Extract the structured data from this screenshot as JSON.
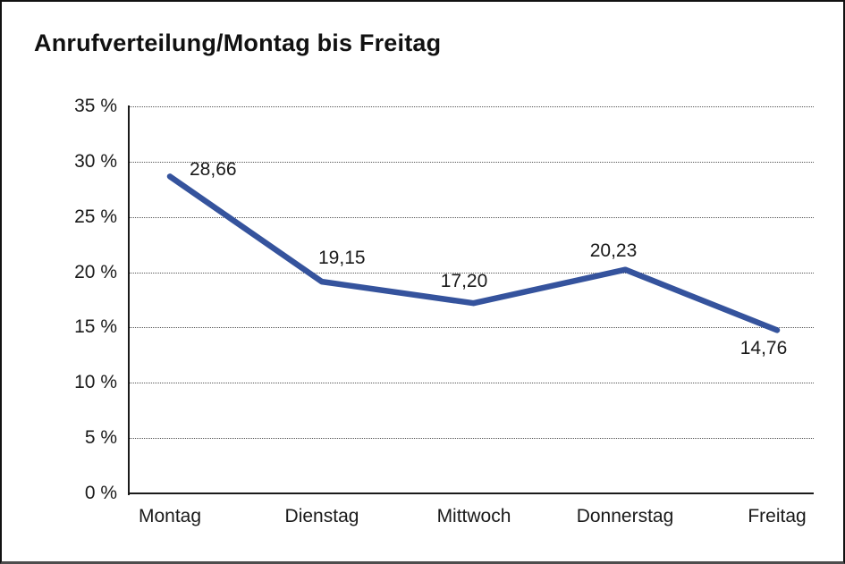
{
  "title": "Anrufverteilung/Montag bis Freitag",
  "chart_data": {
    "type": "line",
    "title": "Anrufverteilung/Montag bis Freitag",
    "categories": [
      "Montag",
      "Dienstag",
      "Mittwoch",
      "Donnerstag",
      "Freitag"
    ],
    "series": [
      {
        "name": "Anrufverteilung",
        "values": [
          28.66,
          19.15,
          17.2,
          20.23,
          14.76
        ]
      }
    ],
    "value_labels": [
      "28,66",
      "19,15",
      "17,20",
      "20,23",
      "14,76"
    ],
    "label_placements": [
      "right",
      "above",
      "above",
      "above",
      "below"
    ],
    "ytick_labels": [
      "0 %",
      "5 %",
      "10 %",
      "15 %",
      "20 %",
      "25 %",
      "30 %",
      "35 %"
    ],
    "ylim": [
      0,
      35
    ],
    "ytick_step": 5,
    "xlabel": "",
    "ylabel": "",
    "grid": "horizontal-dotted",
    "legend_position": "none",
    "line_color": "#35539D",
    "axis_color": "#1a1a1a",
    "text_color": "#1a1a1a",
    "background_color": "#ffffff"
  }
}
